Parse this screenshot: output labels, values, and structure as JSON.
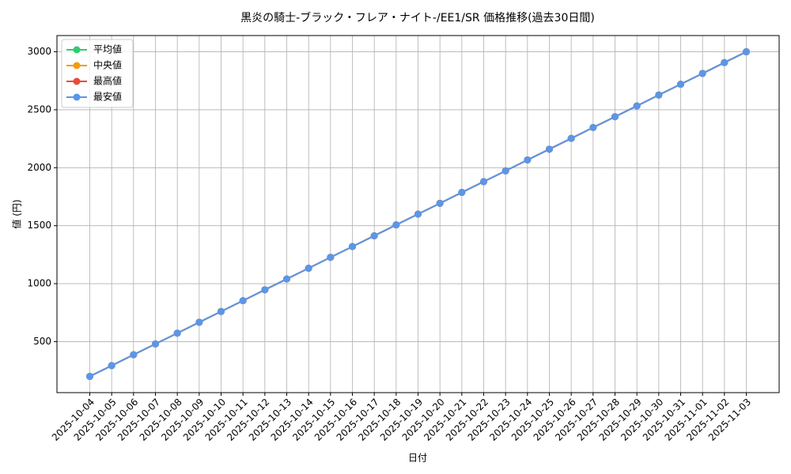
{
  "chart_data": {
    "type": "line",
    "title": "黒炎の騎士-ブラック・フレア・ナイト-/EE1/SR 価格推移(過去30日間)",
    "x_label": "日付",
    "y_label": "値 (円)",
    "categories": [
      "2025-10-04",
      "2025-10-05",
      "2025-10-06",
      "2025-10-07",
      "2025-10-08",
      "2025-10-09",
      "2025-10-10",
      "2025-10-11",
      "2025-10-12",
      "2025-10-13",
      "2025-10-14",
      "2025-10-15",
      "2025-10-16",
      "2025-10-17",
      "2025-10-18",
      "2025-10-19",
      "2025-10-20",
      "2025-10-21",
      "2025-10-22",
      "2025-10-23",
      "2025-10-24",
      "2025-10-25",
      "2025-10-26",
      "2025-10-27",
      "2025-10-28",
      "2025-10-29",
      "2025-10-30",
      "2025-10-31",
      "2025-11-01",
      "2025-11-02",
      "2025-11-03"
    ],
    "series": [
      {
        "name": "平均値",
        "color": "#2ecc71",
        "values": [
          200,
          293,
          387,
          480,
          573,
          667,
          760,
          853,
          947,
          1040,
          1133,
          1227,
          1320,
          1413,
          1507,
          1600,
          1693,
          1787,
          1880,
          1973,
          2067,
          2160,
          2253,
          2347,
          2440,
          2533,
          2627,
          2720,
          2813,
          2907,
          3000
        ]
      },
      {
        "name": "中央値",
        "color": "#f39c12",
        "values": [
          200,
          293,
          387,
          480,
          573,
          667,
          760,
          853,
          947,
          1040,
          1133,
          1227,
          1320,
          1413,
          1507,
          1600,
          1693,
          1787,
          1880,
          1973,
          2067,
          2160,
          2253,
          2347,
          2440,
          2533,
          2627,
          2720,
          2813,
          2907,
          3000
        ]
      },
      {
        "name": "最高値",
        "color": "#e74c3c",
        "values": [
          200,
          293,
          387,
          480,
          573,
          667,
          760,
          853,
          947,
          1040,
          1133,
          1227,
          1320,
          1413,
          1507,
          1600,
          1693,
          1787,
          1880,
          1973,
          2067,
          2160,
          2253,
          2347,
          2440,
          2533,
          2627,
          2720,
          2813,
          2907,
          3000
        ]
      },
      {
        "name": "最安値",
        "color": "#5b96e8",
        "values": [
          200,
          293,
          387,
          480,
          573,
          667,
          760,
          853,
          947,
          1040,
          1133,
          1227,
          1320,
          1413,
          1507,
          1600,
          1693,
          1787,
          1880,
          1973,
          2067,
          2160,
          2253,
          2347,
          2440,
          2533,
          2627,
          2720,
          2813,
          2907,
          3000
        ]
      }
    ],
    "ylim": [
      60,
      3140
    ],
    "yticks": [
      500,
      1000,
      1500,
      2000,
      2500,
      3000
    ],
    "grid": true,
    "legend": "upper-left"
  }
}
